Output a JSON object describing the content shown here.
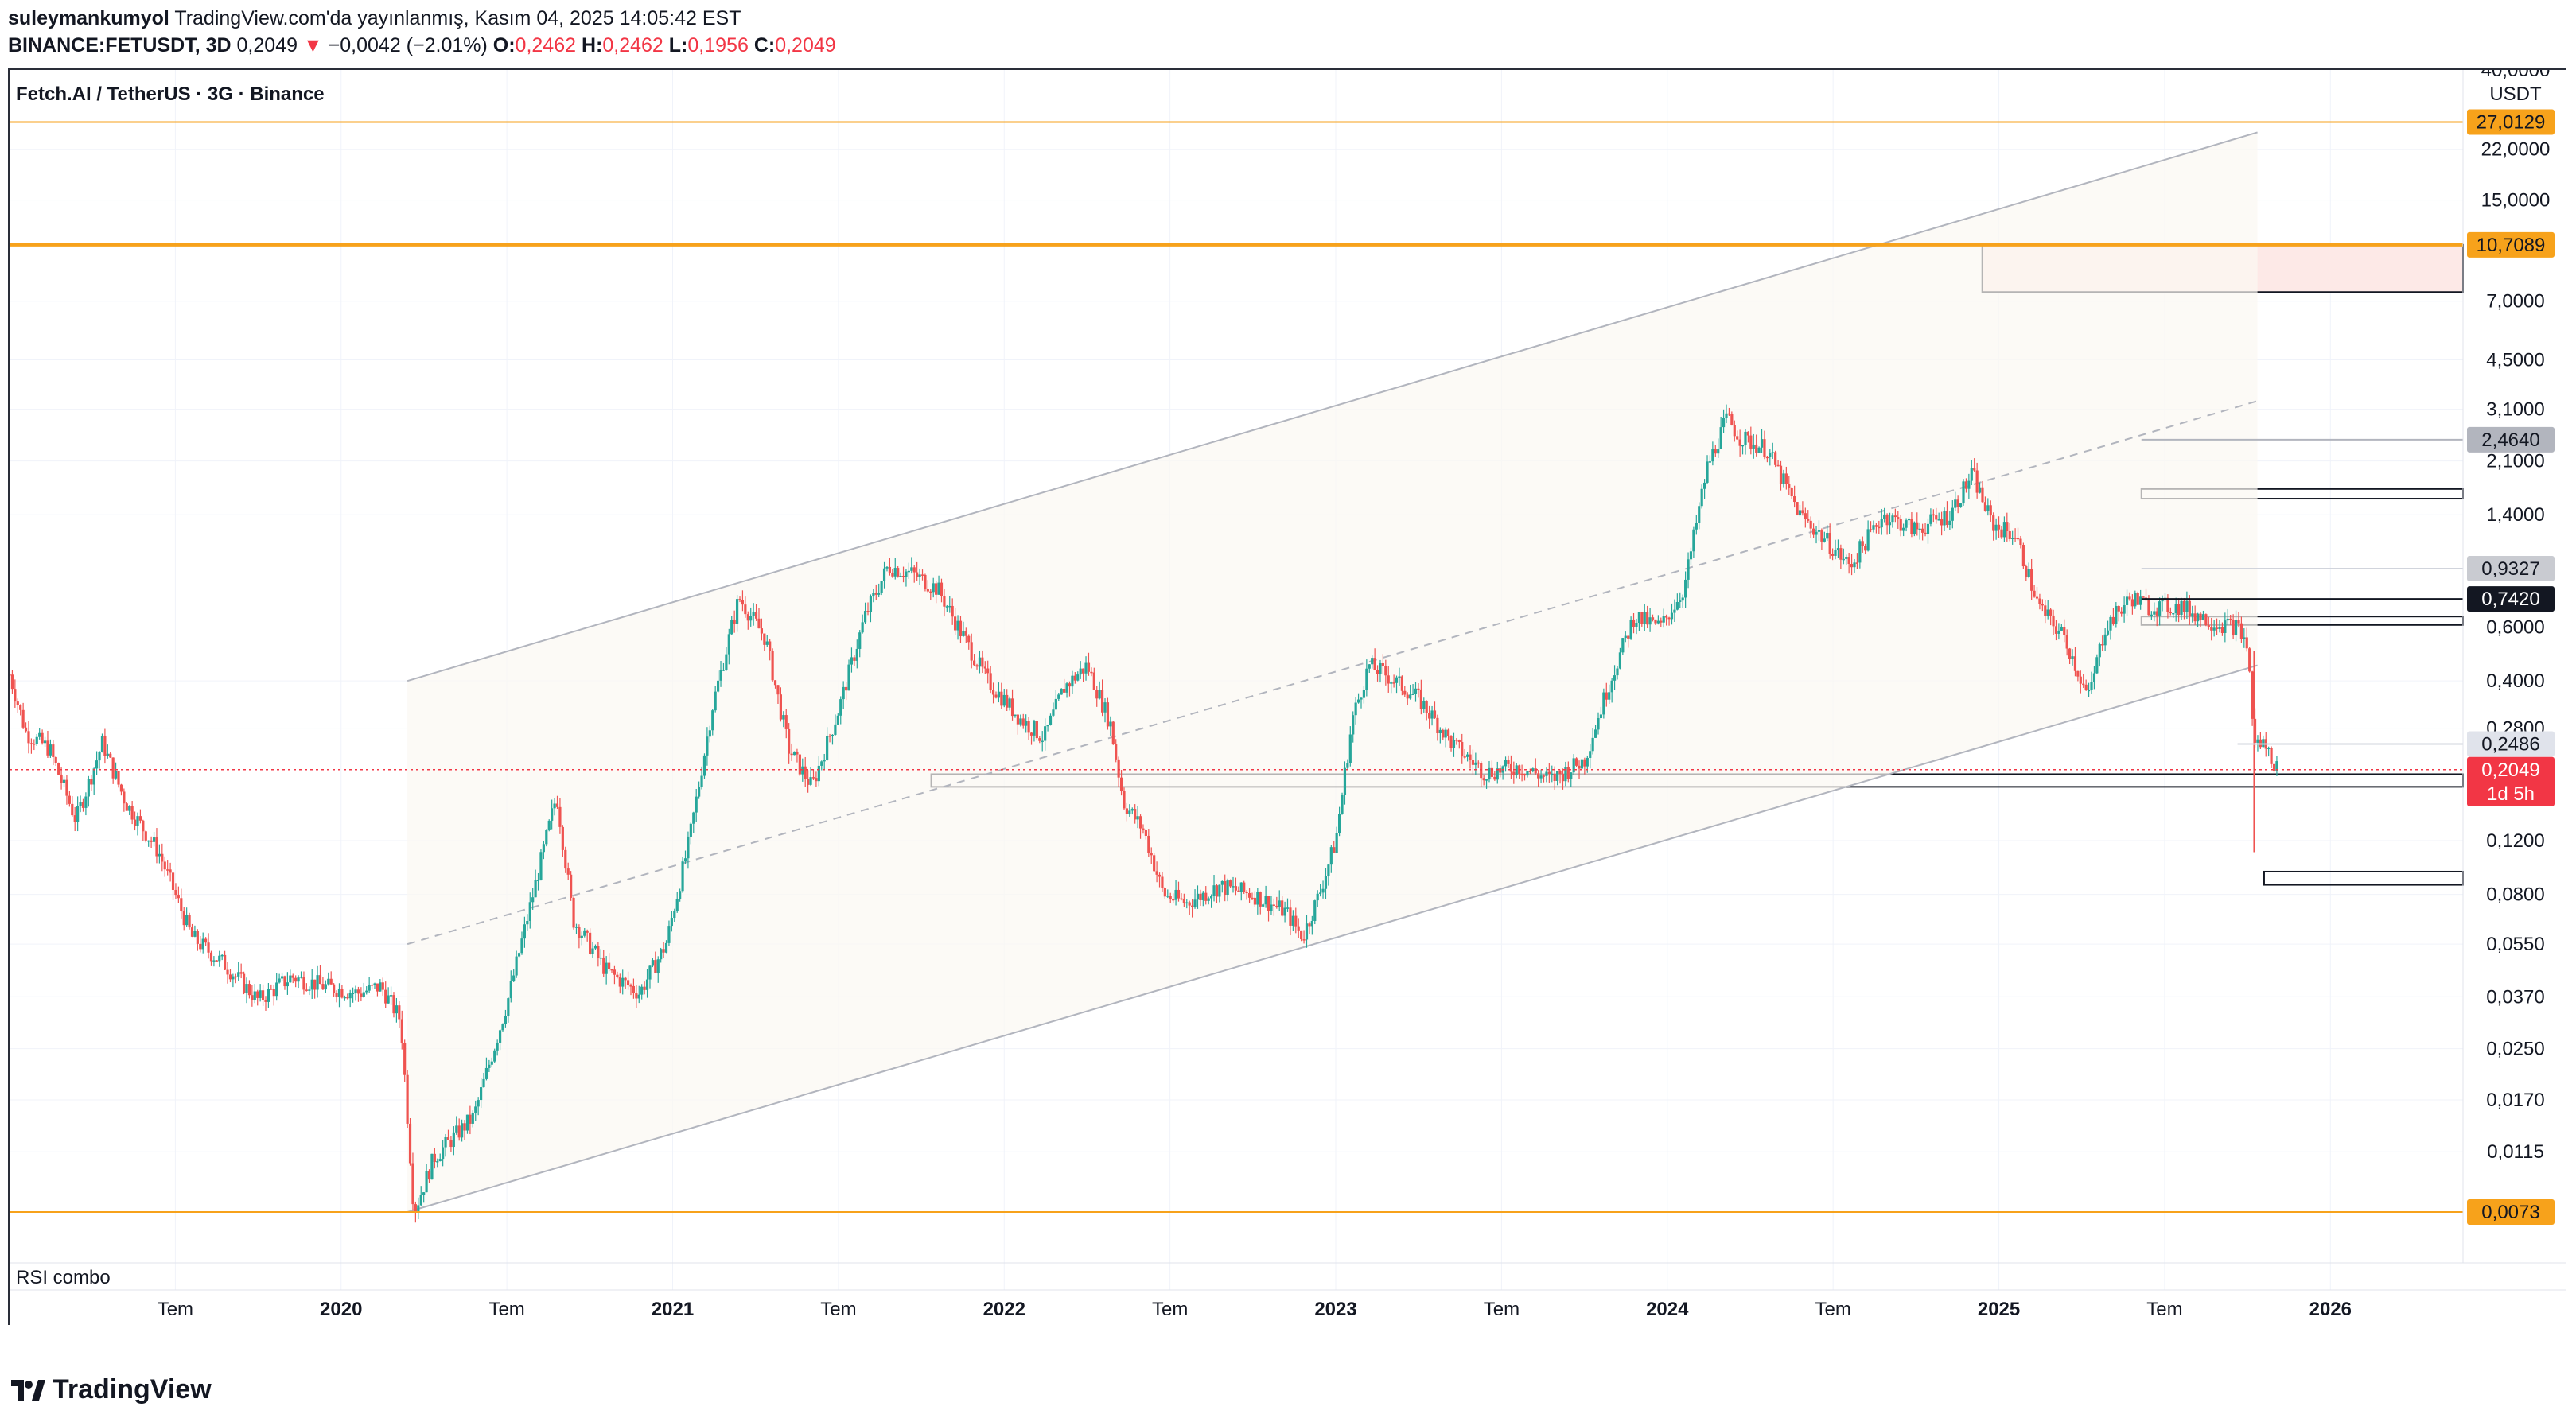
{
  "header": {
    "publisher_user": "suleymankumyol",
    "publisher_text": "TradingView.com'da yayınlanmış, Kasım 04, 2025 14:05:42 EST",
    "symbol": "BINANCE:FETUSDT, 3D",
    "last": "0,2049",
    "change": "−0,0042 (−2.01%)",
    "o_label": "O:",
    "o_val": "0,2462",
    "h_label": "H:",
    "h_val": "0,2462",
    "l_label": "L:",
    "l_val": "0,1956",
    "c_label": "C:",
    "c_val": "0,2049"
  },
  "chart_title": "Fetch.AI / TetherUS · 3G · Binance",
  "currency": "USDT",
  "indicator_label": "RSI combo",
  "footer_brand": "TradingView",
  "colors": {
    "up": "#26a69a",
    "down": "#ef5350",
    "orange": "#f7a21b",
    "last_price": "#f23645"
  },
  "chart_data": {
    "type": "candlestick",
    "scale": "log",
    "ylim": [
      0.0073,
      40.0
    ],
    "y_ticks": [
      {
        "v": 22.0,
        "t": "22,0000"
      },
      {
        "v": 15.0,
        "t": "15,0000"
      },
      {
        "v": 7.0,
        "t": "7,0000"
      },
      {
        "v": 4.5,
        "t": "4,5000"
      },
      {
        "v": 3.1,
        "t": "3,1000"
      },
      {
        "v": 2.1,
        "t": "2,1000"
      },
      {
        "v": 1.4,
        "t": "1,4000"
      },
      {
        "v": 0.6,
        "t": "0,6000"
      },
      {
        "v": 0.4,
        "t": "0,4000"
      },
      {
        "v": 0.28,
        "t": "0,2800"
      },
      {
        "v": 0.12,
        "t": "0,1200"
      },
      {
        "v": 0.08,
        "t": "0,0800"
      },
      {
        "v": 0.055,
        "t": "0,0550"
      },
      {
        "v": 0.037,
        "t": "0,0370"
      },
      {
        "v": 0.025,
        "t": "0,0250"
      },
      {
        "v": 0.017,
        "t": "0,0170"
      },
      {
        "v": 0.0115,
        "t": "0,0115"
      }
    ],
    "x_range": [
      2019.0,
      2026.4
    ],
    "x_ticks": [
      {
        "v": 2019.5,
        "t": "Tem",
        "bold": false
      },
      {
        "v": 2020.0,
        "t": "2020",
        "bold": true
      },
      {
        "v": 2020.5,
        "t": "Tem",
        "bold": false
      },
      {
        "v": 2021.0,
        "t": "2021",
        "bold": true
      },
      {
        "v": 2021.5,
        "t": "Tem",
        "bold": false
      },
      {
        "v": 2022.0,
        "t": "2022",
        "bold": true
      },
      {
        "v": 2022.5,
        "t": "Tem",
        "bold": false
      },
      {
        "v": 2023.0,
        "t": "2023",
        "bold": true
      },
      {
        "v": 2023.5,
        "t": "Tem",
        "bold": false
      },
      {
        "v": 2024.0,
        "t": "2024",
        "bold": true
      },
      {
        "v": 2024.5,
        "t": "Tem",
        "bold": false
      },
      {
        "v": 2025.0,
        "t": "2025",
        "bold": true
      },
      {
        "v": 2025.5,
        "t": "Tem",
        "bold": false
      },
      {
        "v": 2026.0,
        "t": "2026",
        "bold": true
      }
    ],
    "price_path": [
      [
        2019.0,
        0.42
      ],
      [
        2019.05,
        0.27
      ],
      [
        2019.12,
        0.24
      ],
      [
        2019.2,
        0.14
      ],
      [
        2019.28,
        0.25
      ],
      [
        2019.35,
        0.16
      ],
      [
        2019.45,
        0.11
      ],
      [
        2019.55,
        0.058
      ],
      [
        2019.65,
        0.047
      ],
      [
        2019.75,
        0.036
      ],
      [
        2019.85,
        0.043
      ],
      [
        2019.95,
        0.04
      ],
      [
        2020.05,
        0.038
      ],
      [
        2020.12,
        0.04
      ],
      [
        2020.18,
        0.031
      ],
      [
        2020.22,
        0.0073
      ],
      [
        2020.28,
        0.011
      ],
      [
        2020.4,
        0.015
      ],
      [
        2020.5,
        0.035
      ],
      [
        2020.6,
        0.1
      ],
      [
        2020.65,
        0.17
      ],
      [
        2020.7,
        0.066
      ],
      [
        2020.8,
        0.045
      ],
      [
        2020.9,
        0.038
      ],
      [
        2020.98,
        0.055
      ],
      [
        2021.05,
        0.12
      ],
      [
        2021.12,
        0.33
      ],
      [
        2021.2,
        0.75
      ],
      [
        2021.28,
        0.55
      ],
      [
        2021.35,
        0.24
      ],
      [
        2021.42,
        0.18
      ],
      [
        2021.5,
        0.32
      ],
      [
        2021.58,
        0.65
      ],
      [
        2021.65,
        0.95
      ],
      [
        2021.72,
        0.9
      ],
      [
        2021.8,
        0.8
      ],
      [
        2021.88,
        0.55
      ],
      [
        2021.95,
        0.4
      ],
      [
        2022.05,
        0.3
      ],
      [
        2022.12,
        0.26
      ],
      [
        2022.18,
        0.38
      ],
      [
        2022.25,
        0.45
      ],
      [
        2022.32,
        0.29
      ],
      [
        2022.36,
        0.16
      ],
      [
        2022.42,
        0.13
      ],
      [
        2022.48,
        0.08
      ],
      [
        2022.55,
        0.075
      ],
      [
        2022.65,
        0.085
      ],
      [
        2022.75,
        0.08
      ],
      [
        2022.85,
        0.07
      ],
      [
        2022.9,
        0.058
      ],
      [
        2022.95,
        0.08
      ],
      [
        2023.0,
        0.12
      ],
      [
        2023.05,
        0.3
      ],
      [
        2023.1,
        0.45
      ],
      [
        2023.15,
        0.42
      ],
      [
        2023.25,
        0.35
      ],
      [
        2023.35,
        0.25
      ],
      [
        2023.45,
        0.2
      ],
      [
        2023.55,
        0.21
      ],
      [
        2023.65,
        0.19
      ],
      [
        2023.75,
        0.22
      ],
      [
        2023.82,
        0.38
      ],
      [
        2023.9,
        0.65
      ],
      [
        2023.98,
        0.6
      ],
      [
        2024.05,
        0.8
      ],
      [
        2024.12,
        2.0
      ],
      [
        2024.18,
        2.9
      ],
      [
        2024.22,
        2.5
      ],
      [
        2024.3,
        2.3
      ],
      [
        2024.4,
        1.4
      ],
      [
        2024.48,
        1.15
      ],
      [
        2024.55,
        0.95
      ],
      [
        2024.65,
        1.4
      ],
      [
        2024.75,
        1.25
      ],
      [
        2024.85,
        1.4
      ],
      [
        2024.92,
        1.9
      ],
      [
        2024.98,
        1.3
      ],
      [
        2025.05,
        1.2
      ],
      [
        2025.12,
        0.7
      ],
      [
        2025.2,
        0.55
      ],
      [
        2025.27,
        0.35
      ],
      [
        2025.32,
        0.6
      ],
      [
        2025.4,
        0.75
      ],
      [
        2025.45,
        0.7
      ],
      [
        2025.55,
        0.7
      ],
      [
        2025.65,
        0.62
      ],
      [
        2025.72,
        0.6
      ],
      [
        2025.75,
        0.52
      ],
      [
        2025.77,
        0.25
      ],
      [
        2025.8,
        0.25
      ],
      [
        2025.84,
        0.2049
      ]
    ],
    "lines": [
      {
        "kind": "h",
        "price": 27.0129,
        "color": "#f7a21b",
        "width": 2,
        "label": "27,0129"
      },
      {
        "kind": "h",
        "price": 10.7089,
        "color": "#f7a21b",
        "width": 4,
        "label": "10,7089"
      },
      {
        "kind": "h",
        "price": 0.0073,
        "color": "#f7a21b",
        "width": 2,
        "label": "0,0073"
      },
      {
        "kind": "h_dotted",
        "price": 0.2049,
        "color": "#f23645",
        "width": 1.5
      }
    ],
    "channel": {
      "upper": [
        [
          2020.2,
          0.4
        ],
        [
          2025.78,
          25.0
        ]
      ],
      "lower": [
        [
          2020.2,
          0.0073
        ],
        [
          2025.78,
          0.45
        ]
      ],
      "mid": [
        [
          2020.2,
          0.055
        ],
        [
          2025.78,
          3.3
        ]
      ]
    },
    "zones": [
      {
        "x0": 2024.95,
        "x1": 2026.4,
        "hi": 10.7089,
        "lo": 7.5,
        "fill": "#fde9e7"
      },
      {
        "x0": 2025.43,
        "x1": 2026.4,
        "hi": 1.7,
        "lo": 1.58,
        "fill": "none"
      },
      {
        "x0": 2025.43,
        "x1": 2026.4,
        "hi": 0.65,
        "lo": 0.61,
        "fill": "none"
      },
      {
        "x0": 2021.78,
        "x1": 2026.4,
        "hi": 0.198,
        "lo": 0.18,
        "fill": "none"
      },
      {
        "x0": 2025.8,
        "x1": 2026.4,
        "hi": 0.095,
        "lo": 0.086,
        "fill": "none"
      }
    ],
    "segments": [
      {
        "x0": 2025.43,
        "x1": 2026.4,
        "price": 2.464,
        "color": "#b2b5be"
      },
      {
        "x0": 2025.43,
        "x1": 2026.4,
        "price": 0.9327,
        "color": "#d1d4dc"
      },
      {
        "x0": 2025.43,
        "x1": 2026.4,
        "price": 0.742,
        "color": "#131722"
      },
      {
        "x0": 2025.72,
        "x1": 2026.4,
        "price": 0.2486,
        "color": "#d1d4dc"
      }
    ],
    "price_labels": [
      {
        "price": 2.464,
        "text": "2,4640",
        "bg": "#b2b5be",
        "fg": "#131722"
      },
      {
        "price": 0.9327,
        "text": "0,9327",
        "bg": "#c9cbd1",
        "fg": "#131722"
      },
      {
        "price": 0.742,
        "text": "0,7420",
        "bg": "#131722",
        "fg": "#ffffff"
      },
      {
        "price": 0.2486,
        "text": "0,2486",
        "bg": "#e0e3eb",
        "fg": "#131722"
      }
    ],
    "last_price": {
      "price": 0.2049,
      "text": "0,2049",
      "countdown": "1d 5h"
    }
  }
}
